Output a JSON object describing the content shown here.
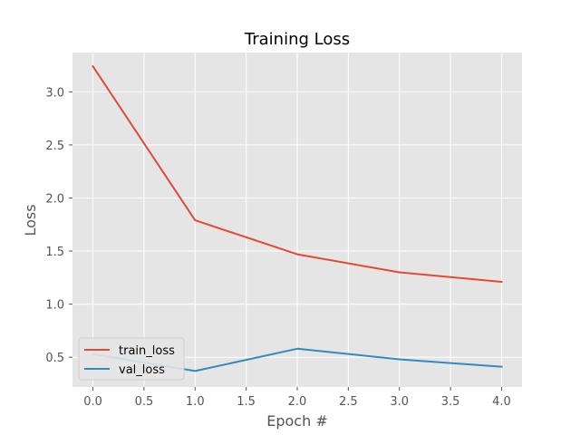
{
  "chart_data": {
    "type": "line",
    "title": "Training Loss",
    "xlabel": "Epoch #",
    "ylabel": "Loss",
    "x": [
      0,
      1,
      2,
      3,
      4
    ],
    "xlim": [
      -0.2,
      4.2
    ],
    "ylim": [
      0.22,
      3.37
    ],
    "xticks": [
      0.0,
      0.5,
      1.0,
      1.5,
      2.0,
      2.5,
      3.0,
      3.5,
      4.0
    ],
    "yticks": [
      0.5,
      1.0,
      1.5,
      2.0,
      2.5,
      3.0
    ],
    "xtick_labels": [
      "0.0",
      "0.5",
      "1.0",
      "1.5",
      "2.0",
      "2.5",
      "3.0",
      "3.5",
      "4.0"
    ],
    "ytick_labels": [
      "0.5",
      "1.0",
      "1.5",
      "2.0",
      "2.5",
      "3.0"
    ],
    "grid": true,
    "legend_position": "lower-left",
    "background": "#e5e5e5",
    "series": [
      {
        "name": "train_loss",
        "color": "#e24a33",
        "values": [
          3.24,
          1.79,
          1.47,
          1.3,
          1.21
        ]
      },
      {
        "name": "val_loss",
        "color": "#348abd",
        "values": [
          0.53,
          0.37,
          0.58,
          0.48,
          0.41
        ]
      }
    ]
  }
}
